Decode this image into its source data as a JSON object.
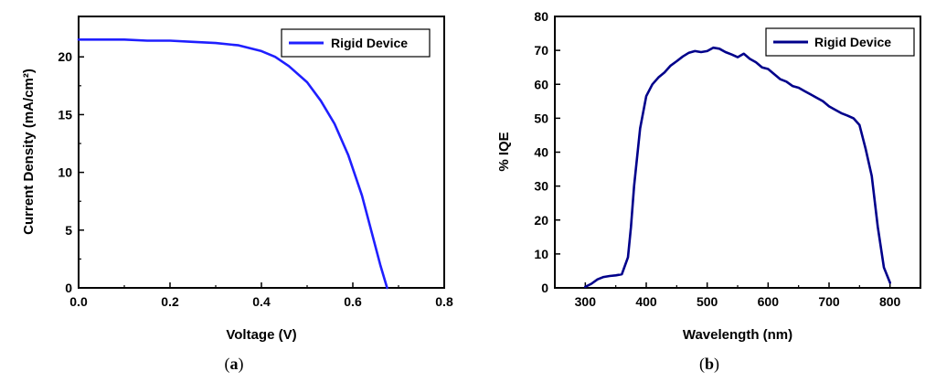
{
  "chart_data": [
    {
      "type": "line",
      "panel_label": "a",
      "xlabel": "Voltage (V)",
      "ylabel": "Current Density (mA/cm²)",
      "xlim": [
        0.0,
        0.8
      ],
      "ylim": [
        0,
        23.5
      ],
      "xticks": [
        "0.0",
        "0.2",
        "0.4",
        "0.6",
        "0.8"
      ],
      "yticks": [
        "0",
        "5",
        "10",
        "15",
        "20"
      ],
      "grid": false,
      "legend_position": "top-right",
      "series": [
        {
          "name": "Rigid Device",
          "color": "#1f1fff",
          "x": [
            0.0,
            0.05,
            0.1,
            0.15,
            0.2,
            0.25,
            0.3,
            0.35,
            0.4,
            0.43,
            0.46,
            0.5,
            0.53,
            0.56,
            0.59,
            0.62,
            0.64,
            0.66,
            0.675
          ],
          "y": [
            21.5,
            21.5,
            21.5,
            21.4,
            21.4,
            21.3,
            21.2,
            21.0,
            20.5,
            20.0,
            19.2,
            17.8,
            16.2,
            14.2,
            11.5,
            8.0,
            5.0,
            2.0,
            0
          ]
        }
      ]
    },
    {
      "type": "line",
      "panel_label": "b",
      "xlabel": "Wavelength (nm)",
      "ylabel": "% IQE",
      "xlim": [
        250,
        850
      ],
      "ylim": [
        0,
        80
      ],
      "xticks": [
        "300",
        "400",
        "500",
        "600",
        "700",
        "800"
      ],
      "yticks": [
        "0",
        "10",
        "20",
        "30",
        "40",
        "50",
        "60",
        "70",
        "80"
      ],
      "grid": false,
      "legend_position": "top-right",
      "series": [
        {
          "name": "Rigid Device",
          "color": "#00008b",
          "x": [
            300,
            310,
            320,
            330,
            340,
            350,
            360,
            370,
            375,
            380,
            390,
            400,
            410,
            420,
            430,
            440,
            450,
            460,
            470,
            480,
            490,
            500,
            510,
            520,
            530,
            540,
            550,
            560,
            570,
            580,
            590,
            600,
            610,
            620,
            630,
            640,
            650,
            660,
            670,
            680,
            690,
            700,
            710,
            720,
            730,
            740,
            750,
            760,
            770,
            780,
            790,
            800
          ],
          "y": [
            0.3,
            1.2,
            2.5,
            3.2,
            3.5,
            3.7,
            4.0,
            9.0,
            18.0,
            30.0,
            47.0,
            56.5,
            60.0,
            62.0,
            63.5,
            65.5,
            66.8,
            68.2,
            69.3,
            69.8,
            69.5,
            69.8,
            70.8,
            70.5,
            69.5,
            68.8,
            68.0,
            69.0,
            67.5,
            66.5,
            65.0,
            64.5,
            63.0,
            61.5,
            60.8,
            59.5,
            59.0,
            58.0,
            57.0,
            56.0,
            55.0,
            53.5,
            52.5,
            51.5,
            50.8,
            50.0,
            48.0,
            41.0,
            33.0,
            18.0,
            6.0,
            1.5
          ]
        }
      ]
    }
  ]
}
